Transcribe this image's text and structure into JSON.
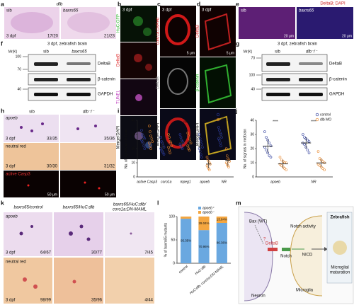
{
  "panel_letters": [
    "a",
    "b",
    "c",
    "d",
    "e",
    "f",
    "g",
    "h",
    "i",
    "j",
    "k",
    "l",
    "m"
  ],
  "a": {
    "title": "dlb",
    "groups": [
      "sib",
      "baxrs65"
    ],
    "stage": "3 dpf",
    "counts": [
      "17/20",
      "21/23"
    ]
  },
  "b": {
    "channels": [
      "HuC:GFP",
      "DeltaB",
      "TUNEL",
      "Merge/DAPI"
    ],
    "stage": "3 dpf"
  },
  "c": {
    "channels": [
      "coro1a:DsRed",
      "DeltaB",
      "Merge/DAPI"
    ],
    "stage": "3 dpf",
    "scale": "5 μm"
  },
  "d": {
    "channels": [
      "DeltaB",
      "β-catenin",
      "Merge/DAPI"
    ],
    "stage": "3 dpf",
    "scale": "5 μm"
  },
  "e": {
    "title": "DeltaB; DAPI",
    "groups": [
      "sib",
      "baxrs65"
    ],
    "scales": [
      "20 μm",
      "20 μm"
    ]
  },
  "f": {
    "title": "3 dpf, zebrafish brain",
    "mr": "Mr(K)",
    "groups": [
      "sib",
      "baxrs65"
    ],
    "markers": [
      "100",
      "70",
      "40"
    ],
    "proteins": [
      "DeltaB",
      "β-catenin",
      "GAPDH"
    ]
  },
  "g": {
    "title": "3 dpf, zebrafish brain",
    "mr": "Mr(K)",
    "groups": [
      "sib",
      "dlb⁻/⁻"
    ],
    "markers": [
      "70",
      "100",
      "40"
    ],
    "proteins": [
      "DeltaB",
      "β-catenin",
      "GAPDH"
    ]
  },
  "h": {
    "groups": [
      "sib",
      "dlb⁻/⁻"
    ],
    "rows": [
      "apoeb",
      "neutral red",
      "active Casp3"
    ],
    "stage": "3 dpf",
    "counts": [
      [
        "33/35",
        "35/36"
      ],
      [
        "30/30",
        "31/32"
      ]
    ],
    "scales": [
      "50 μm",
      "50 μm"
    ]
  },
  "i": {
    "chart_data": {
      "type": "dot",
      "y_label": "No. of signals in midbrain",
      "categories": [
        "active Casp3",
        "coro1a",
        "mpeg1",
        "apoeb",
        "NR"
      ],
      "series": [
        {
          "name": "sib",
          "color": "#2b3a9a",
          "points": [
            [
              33,
              30,
              29,
              28,
              27,
              26,
              25,
              24,
              22,
              20
            ],
            [
              28,
              25,
              24,
              22,
              21,
              20,
              19,
              18,
              17,
              16
            ],
            [
              30,
              28,
              26,
              25,
              24,
              23,
              22,
              21,
              20
            ],
            [
              30,
              27,
              25,
              23,
              21,
              20,
              18,
              16,
              14
            ],
            [
              35,
              33,
              31,
              30,
              28,
              27,
              26,
              24,
              22
            ]
          ],
          "means": [
            26.4,
            21,
            24.3,
            21.6,
            28.4
          ],
          "errors": [
            4,
            4,
            3,
            5,
            4
          ]
        },
        {
          "name": "dlb⁻/⁻",
          "color": "#e8862a",
          "points": [
            [
              36,
              32,
              29,
              27,
              25,
              24,
              22,
              20
            ],
            [
              30,
              28,
              25,
              24,
              22,
              21,
              19,
              17
            ],
            [
              31,
              29,
              27,
              25,
              24,
              22,
              20,
              19
            ],
            [
              14,
              12,
              11,
              10,
              9,
              8,
              7,
              6,
              5
            ],
            [
              20,
              15,
              13,
              12,
              11,
              10,
              9,
              8,
              7
            ]
          ],
          "means": [
            26.9,
            23.3,
            24.6,
            9.1,
            11.7
          ],
          "errors": [
            5,
            4,
            4,
            3,
            4
          ]
        }
      ],
      "annotations": [
        "ns",
        "ns",
        "ns",
        "***",
        "****"
      ],
      "ylim": [
        0,
        40
      ],
      "yticks": [
        0,
        10,
        20,
        30,
        40
      ],
      "legend": "upper right"
    }
  },
  "j": {
    "chart_data": {
      "type": "dot",
      "y_label": "No. of signals in midbrain",
      "categories": [
        "apoeb",
        "NR"
      ],
      "series": [
        {
          "name": "control",
          "color": "#2b3a9a",
          "points": [
            [
              32,
              28,
              26,
              24,
              22,
              21,
              19,
              17,
              15,
              14
            ],
            [
              30,
              28,
              27,
              26,
              25,
              24,
              23,
              21,
              19,
              17
            ]
          ],
          "means": [
            21.8,
            24
          ],
          "errors": [
            5,
            4
          ]
        },
        {
          "name": "dlb MO",
          "color": "#e8862a",
          "points": [
            [
              14,
              12,
              11,
              10,
              10,
              9,
              8,
              7,
              6,
              5
            ],
            [
              18,
              13,
              12,
              11,
              10,
              9,
              8,
              7,
              6,
              5
            ]
          ],
          "means": [
            9.2,
            9.9
          ],
          "errors": [
            3,
            3
          ]
        }
      ],
      "annotations": [
        "****",
        "****"
      ],
      "ylim": [
        0,
        40
      ],
      "yticks": [
        0,
        10,
        20,
        30,
        40
      ],
      "legend": "upper right"
    }
  },
  "k": {
    "headers": [
      "baxrs65/control",
      "baxrs65/HuC:dlb",
      [
        "baxrs65/HuC:dlb/",
        "coro1a:DN-MAML"
      ]
    ],
    "rows": [
      "apoeb",
      "neutral red"
    ],
    "stage": "3 dpf",
    "counts": [
      [
        "64/67",
        "30/77",
        "7/45"
      ],
      [
        "98/99",
        "35/96",
        "4/44"
      ]
    ]
  },
  "l": {
    "chart_data": {
      "type": "stacked_bar",
      "y_label": "% of baxrs65 mutants",
      "categories": [
        "control",
        "HuC:dlb",
        "HuC:dlb; coro1a:DN-MAML"
      ],
      "series": [
        {
          "name": "apoeb⁺",
          "color": "#6aa8e0",
          "values": [
            95.35,
            70.96,
            86.36
          ],
          "value_labels": [
            "95.35%",
            "70.96%",
            "86.36%"
          ]
        },
        {
          "name": "apoeb⁻",
          "color": "#f4a640",
          "values": [
            4.65,
            29.04,
            13.64
          ],
          "value_labels": [
            null,
            "29.04%",
            "13.64%"
          ]
        }
      ],
      "ylim": [
        0,
        100
      ],
      "yticks": [
        0,
        50,
        100
      ],
      "legend": "top"
    }
  },
  "m": {
    "bax": "Bax (WT)",
    "question": "?",
    "deltab": "DeltaB",
    "notch": "Notch",
    "notch_activity": "Notch activity",
    "nicd": "NICD",
    "neuron": "Neuron",
    "microglia": "Microglia",
    "zebrafish": "Zebrafish",
    "maturation": [
      "Microglial",
      "maturation"
    ]
  }
}
